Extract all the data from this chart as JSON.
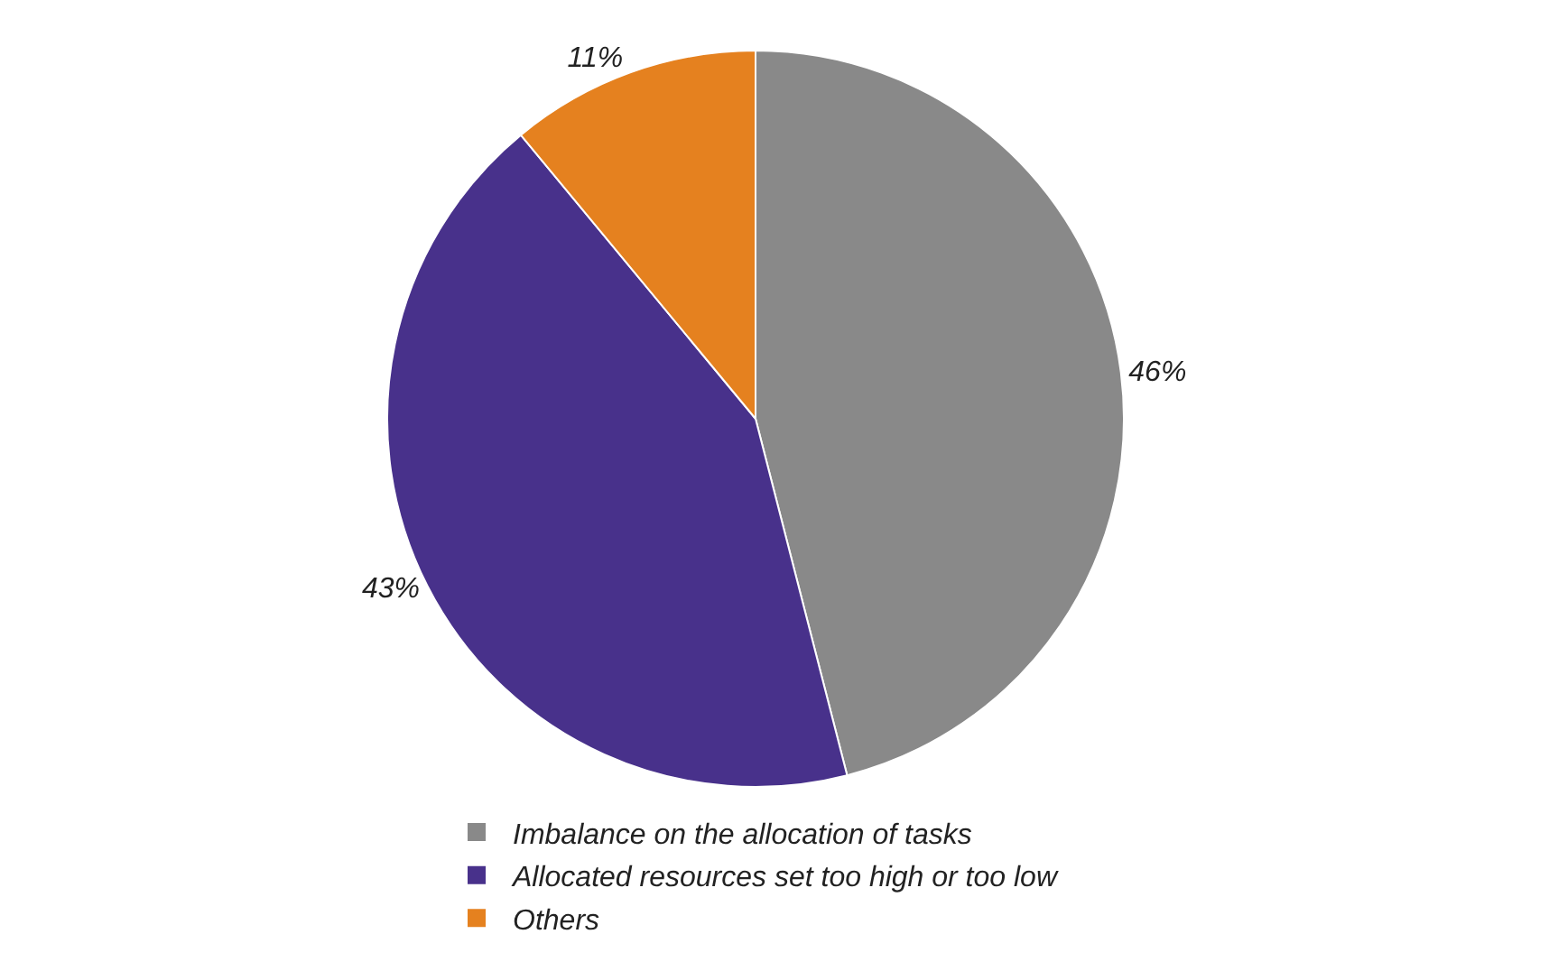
{
  "chart_data": {
    "type": "pie",
    "categories": [
      "Imbalance on the allocation of tasks",
      "Allocated resources set too high or too low",
      "Others"
    ],
    "values": [
      46,
      43,
      11
    ],
    "colors": [
      "#898989",
      "#48318b",
      "#e5811f"
    ],
    "value_labels": [
      "46%",
      "43%",
      "11%"
    ],
    "legend": "bottom"
  }
}
